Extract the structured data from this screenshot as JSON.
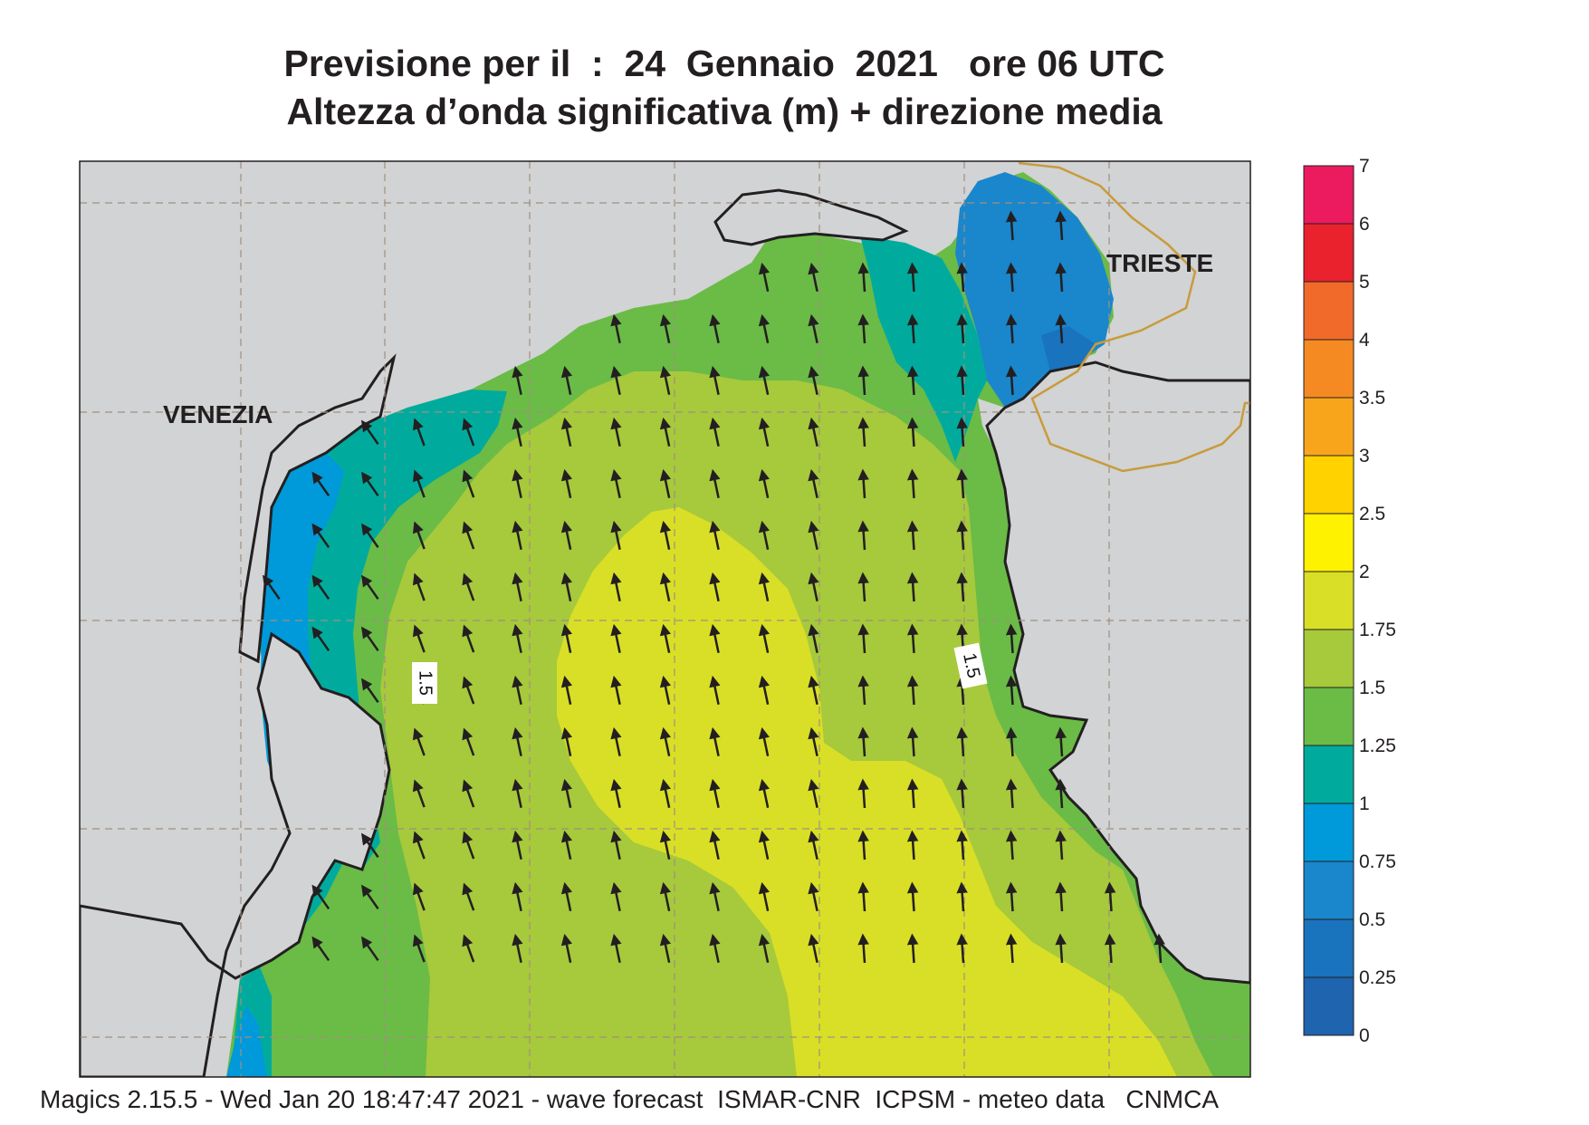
{
  "title": {
    "line1": "Previsione per il  :  24  Gennaio  2021   ore 06 UTC",
    "line2": "Altezza d’onda significativa (m) + direzione media"
  },
  "places": {
    "venezia": "VENEZIA",
    "trieste": "TRIESTE"
  },
  "contour_labels": [
    "1.5",
    "1.5"
  ],
  "legend": {
    "levels": [
      "7",
      "6",
      "5",
      "4",
      "3.5",
      "3",
      "2.5",
      "2",
      "1.75",
      "1.5",
      "1.25",
      "1",
      "0.75",
      "0.5",
      "0.25",
      "0"
    ],
    "colors": [
      "#ec1a5f",
      "#e9222d",
      "#f26a2a",
      "#f58a22",
      "#f9a51c",
      "#ffd200",
      "#fff200",
      "#d9df26",
      "#a7c93c",
      "#6bbb47",
      "#00ab9e",
      "#0099d9",
      "#1a86cc",
      "#1a73bd",
      "#1e64ae"
    ]
  },
  "colors": {
    "land": "#d1d3d4",
    "coast": "#231f20",
    "border": "#c89b3c",
    "arrow": "#231f20"
  },
  "footer": "Magics 2.15.5 - Wed Jan 20 18:47:47 2021 - wave forecast  ISMAR-CNR  ICPSM - meteo data   CNMCA"
}
